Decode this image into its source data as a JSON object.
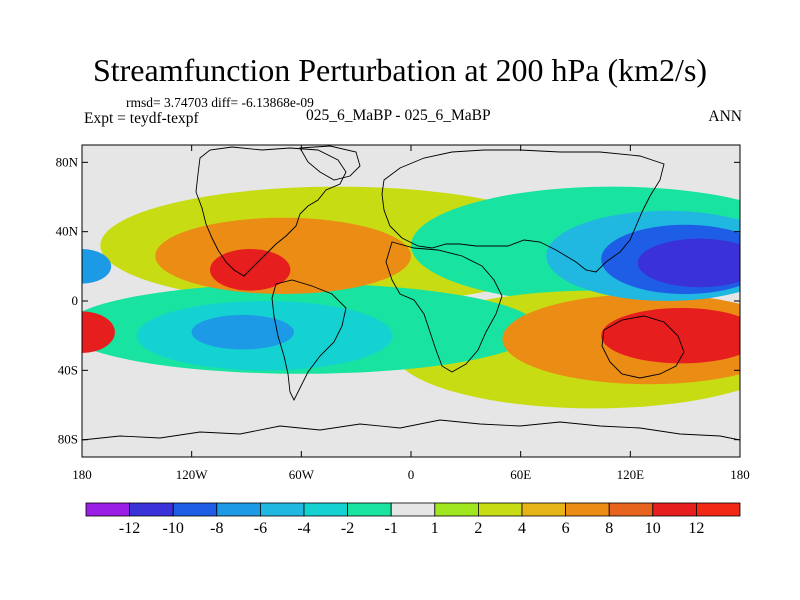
{
  "chart_data": {
    "type": "heatmap",
    "title": "Streamfunction Perturbation at 200 hPa (km2/s)",
    "rmsd_text": "rmsd= 3.74703 diff= -6.13868e-09",
    "expt_text": "Expt = teydf-texpf",
    "cases_text": "025_6_MaBP - 025_6_MaBP",
    "season": "ANN",
    "x_ticks": [
      {
        "value": -180,
        "label": "180"
      },
      {
        "value": -120,
        "label": "120W"
      },
      {
        "value": -60,
        "label": "60W"
      },
      {
        "value": 0,
        "label": "0"
      },
      {
        "value": 60,
        "label": "60E"
      },
      {
        "value": 120,
        "label": "120E"
      },
      {
        "value": 180,
        "label": "180"
      }
    ],
    "y_ticks": [
      {
        "value": 80,
        "label": "80N"
      },
      {
        "value": 40,
        "label": "40N"
      },
      {
        "value": 0,
        "label": "0"
      },
      {
        "value": -40,
        "label": "40S"
      },
      {
        "value": -80,
        "label": "80S"
      }
    ],
    "xlim": [
      -180,
      180
    ],
    "ylim": [
      -90,
      90
    ],
    "colorbar": {
      "levels": [
        "-12",
        "-10",
        "-8",
        "-6",
        "-4",
        "-2",
        "-1",
        "1",
        "2",
        "4",
        "6",
        "8",
        "10",
        "12"
      ],
      "colors": [
        "#9b1ee6",
        "#3b31d8",
        "#1e5ee6",
        "#1d9ae6",
        "#20b8e0",
        "#14d2d2",
        "#19e3a0",
        "#e6e6e6",
        "#a0e61e",
        "#c8dc14",
        "#e6b414",
        "#eb8c14",
        "#e6641e",
        "#e61e1e",
        "#f02814"
      ]
    },
    "fields": [
      {
        "name": "western-pacific-low-north",
        "lon": 158,
        "lat": 22,
        "rlon": 34,
        "rlat": 14,
        "level": -12
      },
      {
        "name": "pacific-low-ring-1",
        "lon": 150,
        "lat": 24,
        "rlon": 46,
        "rlat": 20,
        "level": -10
      },
      {
        "name": "pacific-low-ring-2",
        "lon": 140,
        "lat": 26,
        "rlon": 66,
        "rlat": 26,
        "level": -6
      },
      {
        "name": "pacific-low-ring-3",
        "lon": 110,
        "lat": 32,
        "rlon": 110,
        "rlat": 34,
        "level": -2
      },
      {
        "name": "south-pacific-high",
        "lon": 148,
        "lat": -20,
        "rlon": 44,
        "rlat": 16,
        "level": 10
      },
      {
        "name": "south-pacific-high-ring",
        "lon": 130,
        "lat": -22,
        "rlon": 80,
        "rlat": 26,
        "level": 6
      },
      {
        "name": "indian-ocean-high-ring",
        "lon": 100,
        "lat": -28,
        "rlon": 110,
        "rlat": 34,
        "level": 2
      },
      {
        "name": "atlantic-low-center",
        "lon": -92,
        "lat": -18,
        "rlon": 28,
        "rlat": 10,
        "level": -8
      },
      {
        "name": "atlantic-low-ring",
        "lon": -80,
        "lat": -20,
        "rlon": 70,
        "rlat": 20,
        "level": -4
      },
      {
        "name": "atlantic-low-outer",
        "lon": -60,
        "lat": -16,
        "rlon": 130,
        "rlat": 26,
        "level": -2
      },
      {
        "name": "tropical-high-center",
        "lon": -88,
        "lat": 18,
        "rlon": 22,
        "rlat": 12,
        "level": 10
      },
      {
        "name": "tropical-high-ring",
        "lon": -70,
        "lat": 26,
        "rlon": 70,
        "rlat": 22,
        "level": 6
      },
      {
        "name": "tropical-high-outer",
        "lon": -40,
        "lat": 32,
        "rlon": 130,
        "rlat": 34,
        "level": 2
      },
      {
        "name": "west-edge-high",
        "lon": -180,
        "lat": -18,
        "rlon": 18,
        "rlat": 12,
        "level": 10
      },
      {
        "name": "west-edge-low",
        "lon": -180,
        "lat": 20,
        "rlon": 16,
        "rlat": 10,
        "level": -8
      }
    ]
  }
}
